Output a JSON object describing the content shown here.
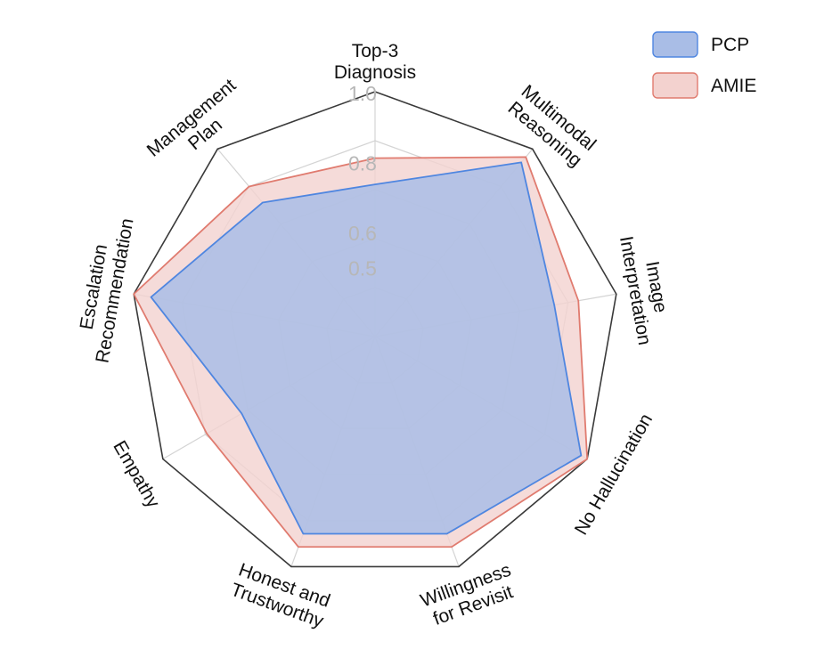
{
  "chart_data": {
    "type": "radar",
    "axes": [
      "Top-3\nDiagnosis",
      "Multimodal\nReasoning",
      "Image\nInterpretation",
      "No Hallucination",
      "Willingness\nfor Revisit",
      "Honest and\nTrustworthy",
      "Empathy",
      "Escalation\nRecommendation",
      "Management\nPlan"
    ],
    "radial_ticks": [
      "1.0",
      "0.8",
      "0.6",
      "0.5"
    ],
    "radial_tick_values": [
      1.0,
      0.8,
      0.6,
      0.5
    ],
    "rlim": [
      0.3,
      1.0
    ],
    "series": [
      {
        "name": "PCP",
        "values": [
          0.735,
          0.95,
          0.82,
          0.98,
          0.9,
          0.9,
          0.74,
          0.95,
          0.8
        ],
        "color": "#4f86e0",
        "fill": "#a9bde6"
      },
      {
        "name": "AMIE",
        "values": [
          0.81,
          0.97,
          0.89,
          1.0,
          0.94,
          0.94,
          0.855,
          1.0,
          0.86
        ],
        "color": "#e07b6f",
        "fill": "#f3d2cf"
      }
    ],
    "legend": "top-right",
    "grid": true
  }
}
